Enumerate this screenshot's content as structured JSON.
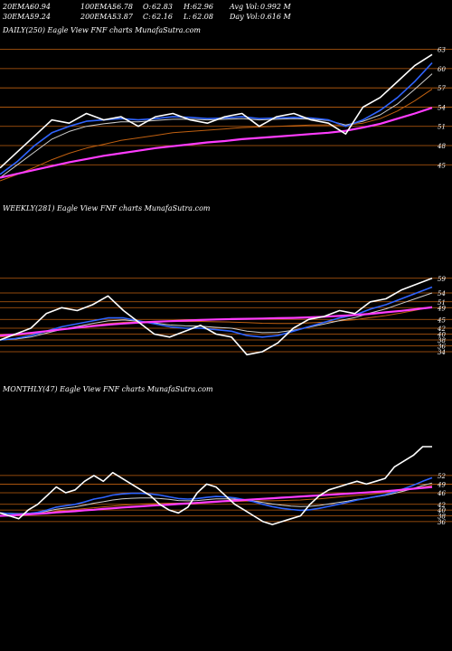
{
  "header": {
    "row1": [
      {
        "label": "20EMA:",
        "value": "60.94"
      },
      {
        "label": "100EMA:",
        "value": "56.78"
      },
      {
        "label": "O:",
        "value": "62.83"
      },
      {
        "label": "H:",
        "value": "62.96"
      },
      {
        "label": "Avg Vol:",
        "value": "0.992  M"
      }
    ],
    "row2": [
      {
        "label": "30EMA:",
        "value": "59.24"
      },
      {
        "label": "200EMA:",
        "value": "53.87"
      },
      {
        "label": "C:",
        "value": "62.16"
      },
      {
        "label": "L:",
        "value": "62.08"
      },
      {
        "label": "Day Vol:",
        "value": "0.616  M"
      }
    ]
  },
  "colors": {
    "background": "#000000",
    "price": "#ffffff",
    "ema_fast": "#2f64ff",
    "ema_slow": "#ff3cff",
    "ema_mid": "#cfcfcf",
    "ema_long": "#c06010",
    "level_line": "#c06010"
  },
  "chart_data": [
    {
      "type": "line",
      "title": "DAILY(250) Eagle   View  FNF charts MunafaSutra.com",
      "yticks": [
        "63",
        "60",
        "57",
        "54",
        "51",
        "48",
        "45"
      ],
      "ylim": [
        42.5,
        64.5
      ],
      "levels": [
        63,
        60,
        57,
        54,
        51,
        48,
        45
      ],
      "x": [
        0,
        10,
        20,
        30,
        40,
        50,
        60,
        70,
        80,
        90,
        100,
        110,
        120,
        130,
        140,
        150,
        160,
        170,
        180,
        190,
        200,
        210,
        220,
        230,
        240,
        250
      ],
      "series": [
        {
          "role": "price",
          "values": [
            44.5,
            47.0,
            49.5,
            52.0,
            51.5,
            53.0,
            52.0,
            52.5,
            51.0,
            52.5,
            53.0,
            52.0,
            51.5,
            52.5,
            53.0,
            51.0,
            52.5,
            53.0,
            52.0,
            51.5,
            49.8,
            54.0,
            55.5,
            58.0,
            60.5,
            62.2
          ]
        },
        {
          "role": "ema20",
          "values": [
            43.5,
            45.5,
            48.0,
            50.0,
            51.0,
            51.8,
            52.0,
            52.2,
            52.0,
            52.2,
            52.5,
            52.4,
            52.2,
            52.3,
            52.5,
            52.2,
            52.3,
            52.4,
            52.3,
            52.0,
            51.0,
            52.0,
            53.5,
            55.5,
            58.0,
            60.9
          ]
        },
        {
          "role": "ema30",
          "values": [
            43.0,
            45.0,
            47.0,
            49.0,
            50.2,
            51.0,
            51.4,
            51.7,
            51.7,
            51.9,
            52.1,
            52.1,
            52.0,
            52.1,
            52.2,
            52.0,
            52.1,
            52.2,
            52.1,
            51.9,
            51.2,
            51.8,
            52.8,
            54.5,
            56.8,
            59.2
          ]
        },
        {
          "role": "ema100",
          "values": [
            42.5,
            43.5,
            44.6,
            45.8,
            46.8,
            47.6,
            48.2,
            48.8,
            49.2,
            49.6,
            50.0,
            50.2,
            50.4,
            50.6,
            50.8,
            50.9,
            51.0,
            51.1,
            51.2,
            51.2,
            51.2,
            51.5,
            52.2,
            53.4,
            55.0,
            56.8
          ]
        },
        {
          "role": "ema200",
          "values": [
            43.0,
            43.6,
            44.2,
            44.8,
            45.4,
            45.9,
            46.4,
            46.8,
            47.2,
            47.6,
            47.9,
            48.2,
            48.5,
            48.7,
            49.0,
            49.2,
            49.4,
            49.6,
            49.8,
            50.0,
            50.3,
            50.8,
            51.4,
            52.2,
            53.0,
            53.9
          ]
        }
      ]
    },
    {
      "type": "line",
      "title": "WEEKLY(281) Eagle   View  FNF charts MunafaSutra.com",
      "yticks": [
        "59",
        "54",
        "51",
        "49",
        "45",
        "42",
        "40",
        "38",
        "36",
        "34"
      ],
      "ylim": [
        30,
        62
      ],
      "levels": [
        59,
        54,
        51,
        49,
        45,
        42,
        40,
        38,
        36,
        34
      ],
      "x": [
        0,
        10,
        20,
        30,
        40,
        50,
        60,
        70,
        80,
        90,
        100,
        110,
        120,
        130,
        140,
        150,
        160,
        170,
        180,
        190,
        200,
        210,
        220,
        230,
        240,
        250,
        260,
        270,
        280
      ],
      "series": [
        {
          "role": "price",
          "values": [
            38,
            40,
            42,
            47,
            49,
            48,
            50,
            53,
            48,
            44,
            40,
            39,
            41,
            43,
            40,
            39,
            33,
            34,
            37,
            42,
            45,
            46,
            48,
            47,
            51,
            52,
            55,
            57,
            59
          ]
        },
        {
          "role": "ema20",
          "values": [
            38,
            38.5,
            39.5,
            41,
            42.5,
            43.5,
            44.5,
            45.5,
            45.5,
            44.5,
            43.5,
            42.5,
            42,
            42,
            41.5,
            41,
            39.5,
            39,
            39.5,
            41,
            42.5,
            44,
            45.5,
            46.5,
            48.5,
            50,
            52,
            54,
            56
          ]
        },
        {
          "role": "ema30",
          "values": [
            38,
            38.3,
            39,
            40.3,
            41.6,
            42.6,
            43.6,
            44.5,
            44.8,
            44.4,
            43.8,
            43.1,
            42.8,
            42.7,
            42.3,
            42,
            41,
            40.5,
            40.6,
            41.3,
            42.3,
            43.4,
            44.6,
            45.6,
            47.2,
            48.6,
            50.4,
            52.2,
            54
          ]
        },
        {
          "role": "ema100",
          "values": [
            39,
            39.5,
            40,
            40.8,
            41.6,
            42.3,
            43,
            43.6,
            44,
            44.2,
            44.3,
            44.3,
            44.3,
            44.3,
            44.2,
            44.1,
            43.9,
            43.7,
            43.6,
            43.6,
            43.8,
            44.1,
            44.5,
            44.9,
            45.6,
            46.3,
            47.2,
            48.2,
            49.3
          ]
        },
        {
          "role": "ema200",
          "values": [
            39.5,
            39.9,
            40.4,
            41.0,
            41.6,
            42.2,
            42.7,
            43.2,
            43.6,
            43.9,
            44.2,
            44.4,
            44.6,
            44.8,
            45.0,
            45.1,
            45.2,
            45.3,
            45.4,
            45.5,
            45.7,
            45.9,
            46.2,
            46.5,
            46.9,
            47.4,
            47.9,
            48.5,
            49.1
          ]
        }
      ]
    },
    {
      "type": "line",
      "title": "MONTHLY(47) Eagle   View  FNF charts MunafaSutra.com",
      "yticks": [
        "52",
        "49",
        "46",
        "42",
        "40",
        "38",
        "36"
      ],
      "ylim": [
        30,
        62
      ],
      "levels": [
        52,
        49,
        46,
        42,
        40,
        38,
        36
      ],
      "x": [
        1,
        2,
        3,
        4,
        5,
        6,
        7,
        8,
        9,
        10,
        11,
        12,
        13,
        14,
        15,
        16,
        17,
        18,
        19,
        20,
        21,
        22,
        23,
        24,
        25,
        26,
        27,
        28,
        29,
        30,
        31,
        32,
        33,
        34,
        35,
        36,
        37,
        38,
        39,
        40,
        41,
        42,
        43,
        44,
        45,
        46,
        47
      ],
      "series": [
        {
          "role": "price",
          "values": [
            39,
            38,
            37,
            40,
            42,
            45,
            48,
            46,
            47,
            50,
            52,
            50,
            53,
            51,
            49,
            47,
            45,
            42,
            40,
            39,
            41,
            46,
            49,
            48,
            45,
            42,
            40,
            38,
            36,
            35,
            36,
            37,
            38,
            42,
            45,
            47,
            48,
            49,
            50,
            49,
            50,
            51,
            55,
            57,
            59,
            62,
            62
          ]
        },
        {
          "role": "ema20",
          "values": [
            39,
            38.8,
            38.6,
            38.8,
            39.2,
            40,
            41,
            41.5,
            42,
            42.8,
            43.8,
            44.4,
            45.2,
            45.6,
            45.8,
            45.8,
            45.6,
            45.2,
            44.6,
            44,
            43.8,
            44,
            44.4,
            44.7,
            44.6,
            44.2,
            43.6,
            42.9,
            42,
            41.2,
            40.6,
            40.2,
            39.9,
            40.1,
            40.6,
            41.3,
            42,
            42.7,
            43.5,
            44.1,
            44.7,
            45.3,
            46.3,
            47.4,
            48.6,
            50,
            51.2
          ]
        },
        {
          "role": "ema30",
          "values": [
            39,
            38.9,
            38.8,
            38.9,
            39.1,
            39.6,
            40.3,
            40.7,
            41.1,
            41.7,
            42.4,
            42.9,
            43.5,
            43.9,
            44.1,
            44.2,
            44.2,
            44,
            43.7,
            43.3,
            43.2,
            43.3,
            43.6,
            43.9,
            43.9,
            43.8,
            43.5,
            43.1,
            42.6,
            42.1,
            41.7,
            41.4,
            41.2,
            41.3,
            41.6,
            42.1,
            42.6,
            43.1,
            43.7,
            44.1,
            44.6,
            45.1,
            45.8,
            46.6,
            47.5,
            48.5,
            49.4
          ]
        },
        {
          "role": "ema100",
          "values": [
            38,
            38.2,
            38.4,
            38.6,
            38.9,
            39.2,
            39.6,
            39.9,
            40.2,
            40.5,
            40.8,
            41.1,
            41.4,
            41.7,
            41.9,
            42.1,
            42.2,
            42.3,
            42.4,
            42.4,
            42.5,
            42.6,
            42.7,
            42.8,
            42.9,
            43,
            43.1,
            43.1,
            43.2,
            43.2,
            43.3,
            43.4,
            43.5,
            43.7,
            43.9,
            44.2,
            44.5,
            44.8,
            45.1,
            45.4,
            45.7,
            46,
            46.4,
            46.9,
            47.4,
            48,
            48.6
          ]
        },
        {
          "role": "ema200",
          "values": [
            38,
            38.1,
            38.3,
            38.5,
            38.7,
            38.9,
            39.2,
            39.4,
            39.6,
            39.9,
            40.1,
            40.4,
            40.6,
            40.9,
            41.1,
            41.3,
            41.5,
            41.7,
            41.9,
            42.1,
            42.3,
            42.5,
            42.7,
            42.9,
            43.1,
            43.3,
            43.5,
            43.7,
            43.9,
            44.1,
            44.3,
            44.5,
            44.7,
            44.9,
            45.1,
            45.3,
            45.5,
            45.7,
            45.9,
            46.1,
            46.3,
            46.5,
            46.8,
            47.1,
            47.4,
            47.7,
            48.0
          ]
        }
      ]
    }
  ]
}
